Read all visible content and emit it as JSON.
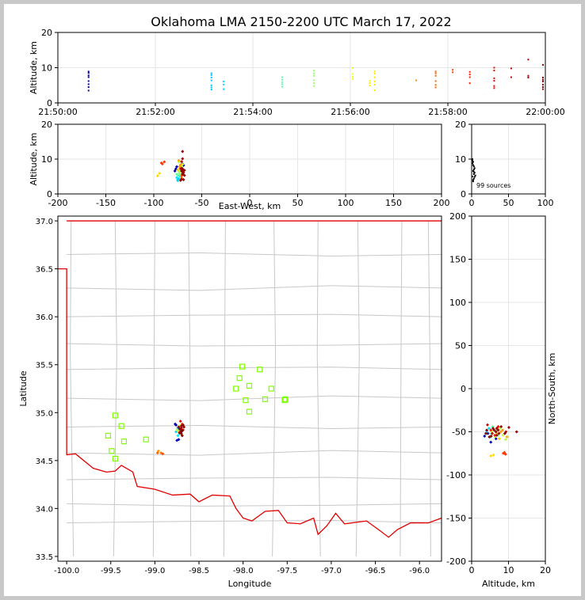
{
  "figure": {
    "title": "Oklahoma LMA 2150-2200 UTC March 17, 2022",
    "source_count": "99 sources",
    "colors": {
      "background": "#c8c8c8",
      "panel": "#ffffff",
      "grid": "#e6e6e6",
      "county": "#c8c8c8",
      "state_border": "#e00000",
      "station": "#7fff00"
    }
  },
  "chart_data": [
    {
      "id": "time-height",
      "type": "scatter",
      "xlabel": "",
      "ylabel": "Altitude, km",
      "xticks": [
        "21:50:00",
        "21:52:00",
        "21:54:00",
        "21:56:00",
        "21:58:00",
        "22:00:00"
      ],
      "x_unit": "minutes after 21:50:00 UTC",
      "xlim": [
        0,
        10
      ],
      "ylim": [
        0,
        20
      ],
      "yticks": [
        0,
        10,
        20
      ],
      "grid": true,
      "color_by": "time",
      "points": [
        [
          0.63,
          3.5
        ],
        [
          0.63,
          4.5
        ],
        [
          0.63,
          5.3
        ],
        [
          0.63,
          6.2
        ],
        [
          0.63,
          7.3
        ],
        [
          0.63,
          7.8
        ],
        [
          0.63,
          8.5
        ],
        [
          0.63,
          8.9
        ],
        [
          3.15,
          3.8
        ],
        [
          3.15,
          4.4
        ],
        [
          3.15,
          5.0
        ],
        [
          3.15,
          6.4
        ],
        [
          3.15,
          7.2
        ],
        [
          3.15,
          7.9
        ],
        [
          3.15,
          8.4
        ],
        [
          3.4,
          3.9
        ],
        [
          3.4,
          5.2
        ],
        [
          3.4,
          6.1
        ],
        [
          4.6,
          4.6
        ],
        [
          4.6,
          5.3
        ],
        [
          4.6,
          5.9
        ],
        [
          4.6,
          6.6
        ],
        [
          4.6,
          7.3
        ],
        [
          5.25,
          4.8
        ],
        [
          5.25,
          5.6
        ],
        [
          5.25,
          6.4
        ],
        [
          5.25,
          7.7
        ],
        [
          5.25,
          8.4
        ],
        [
          5.25,
          9.2
        ],
        [
          6.05,
          6.8
        ],
        [
          6.05,
          7.4
        ],
        [
          6.05,
          8.2
        ],
        [
          6.05,
          9.9
        ],
        [
          6.4,
          4.9
        ],
        [
          6.4,
          5.6
        ],
        [
          6.4,
          6.2
        ],
        [
          6.5,
          3.6
        ],
        [
          6.5,
          5.2
        ],
        [
          6.5,
          6.1
        ],
        [
          6.5,
          7.3
        ],
        [
          6.5,
          8.3
        ],
        [
          6.5,
          8.9
        ],
        [
          7.35,
          6.4
        ],
        [
          7.75,
          4.4
        ],
        [
          7.75,
          5.1
        ],
        [
          7.75,
          6.2
        ],
        [
          7.75,
          7.7
        ],
        [
          7.75,
          8.4
        ],
        [
          7.75,
          8.9
        ],
        [
          8.1,
          8.7
        ],
        [
          8.1,
          9.4
        ],
        [
          8.45,
          5.6
        ],
        [
          8.45,
          7.3
        ],
        [
          8.45,
          8.1
        ],
        [
          8.45,
          8.8
        ],
        [
          8.95,
          4.2
        ],
        [
          8.95,
          4.8
        ],
        [
          8.95,
          6.3
        ],
        [
          8.95,
          7.0
        ],
        [
          8.95,
          9.2
        ],
        [
          8.95,
          10.0
        ],
        [
          9.3,
          7.3
        ],
        [
          9.3,
          9.8
        ],
        [
          9.65,
          7.2
        ],
        [
          9.65,
          7.7
        ],
        [
          9.65,
          12.3
        ],
        [
          9.95,
          3.9
        ],
        [
          9.95,
          4.5
        ],
        [
          9.95,
          5.2
        ],
        [
          9.95,
          6.1
        ],
        [
          9.95,
          6.6
        ],
        [
          9.95,
          7.2
        ],
        [
          9.95,
          10.8
        ]
      ]
    },
    {
      "id": "east-west-altitude",
      "type": "scatter",
      "xlabel": "East-West, km",
      "ylabel": "Altitude, km",
      "xlim": [
        -200,
        200
      ],
      "ylim": [
        0,
        20
      ],
      "xticks": [
        -200,
        -150,
        -100,
        -50,
        0,
        50,
        100,
        150,
        200
      ],
      "yticks": [
        0,
        10,
        20
      ],
      "grid": true,
      "points": [
        [
          -78,
          6.6,
          0.05
        ],
        [
          -77,
          7.2,
          0.05
        ],
        [
          -76,
          7.8,
          0.06
        ],
        [
          -70,
          8.6,
          0.05
        ],
        [
          -69,
          8.2,
          0.07
        ],
        [
          -75,
          4.1,
          0.33
        ],
        [
          -74,
          4.4,
          0.33
        ],
        [
          -76,
          4.7,
          0.35
        ],
        [
          -73,
          5.2,
          0.36
        ],
        [
          -75,
          3.8,
          0.34
        ],
        [
          -75,
          5.3,
          0.46
        ],
        [
          -73,
          5.9,
          0.46
        ],
        [
          -74,
          6.6,
          0.47
        ],
        [
          -72,
          7.1,
          0.48
        ],
        [
          -76,
          5.7,
          0.47
        ],
        [
          -72,
          5.5,
          0.55
        ],
        [
          -73,
          6.3,
          0.56
        ],
        [
          -71,
          7.7,
          0.56
        ],
        [
          -70,
          8.5,
          0.57
        ],
        [
          -74,
          9.2,
          0.56
        ],
        [
          -96,
          5.2,
          0.66
        ],
        [
          -94,
          5.9,
          0.66
        ],
        [
          -75,
          6.9,
          0.67
        ],
        [
          -73,
          7.5,
          0.68
        ],
        [
          -73,
          7.9,
          0.72
        ],
        [
          -72,
          8.4,
          0.72
        ],
        [
          -74,
          9.6,
          0.71
        ],
        [
          -71,
          4.6,
          0.74
        ],
        [
          -91,
          8.6,
          0.82
        ],
        [
          -89,
          9.2,
          0.82
        ],
        [
          -92,
          8.9,
          0.82
        ],
        [
          -71,
          5.2,
          0.8
        ],
        [
          -70,
          6.3,
          0.86
        ],
        [
          -72,
          7.2,
          0.88
        ],
        [
          -71,
          4.3,
          0.93
        ],
        [
          -70,
          5.6,
          0.94
        ],
        [
          -69,
          6.8,
          0.95
        ],
        [
          -71,
          9.3,
          0.95
        ],
        [
          -70,
          10.1,
          0.96
        ],
        [
          -71,
          7.4,
          0.98
        ],
        [
          -70,
          12.2,
          0.98
        ],
        [
          -69,
          6.1,
          0.99
        ],
        [
          -68,
          5.3,
          0.99
        ],
        [
          -69,
          4.1,
          0.99
        ],
        [
          -72,
          3.9,
          0.99
        ],
        [
          -71,
          6.6,
          0.99
        ],
        [
          -70,
          7.2,
          0.99
        ],
        [
          -68,
          6.8,
          0.99
        ],
        [
          -70,
          5.8,
          0.99
        ]
      ]
    },
    {
      "id": "altitude-histogram",
      "type": "scatter",
      "xlim": [
        0,
        100
      ],
      "ylim": [
        0,
        20
      ],
      "xticks": [
        0,
        50,
        100
      ],
      "yticks": [
        0,
        10,
        20
      ],
      "grid": true,
      "points": [
        [
          2,
          4.0
        ],
        [
          3,
          4.4
        ],
        [
          4,
          4.9
        ],
        [
          5,
          5.3
        ],
        [
          3,
          5.7
        ],
        [
          4,
          6.1
        ],
        [
          2,
          6.6
        ],
        [
          3,
          7.0
        ],
        [
          4,
          7.4
        ],
        [
          3,
          7.9
        ],
        [
          2,
          8.3
        ],
        [
          1,
          8.8
        ],
        [
          2,
          9.2
        ],
        [
          1,
          9.6
        ],
        [
          1,
          10.0
        ],
        [
          1,
          5.0
        ],
        [
          2,
          3.6
        ],
        [
          3,
          6.3
        ]
      ]
    },
    {
      "id": "plan-view",
      "type": "map-scatter",
      "xlabel": "Longitude",
      "ylabel": "Latitude",
      "xlim": [
        -100.1,
        -95.75
      ],
      "ylim": [
        33.45,
        37.05
      ],
      "xticks": [
        -100.0,
        -99.5,
        -99.0,
        -98.5,
        -98.0,
        -97.5,
        -97.0,
        -96.5,
        -96.0
      ],
      "yticks": [
        33.5,
        34.0,
        34.5,
        35.0,
        35.5,
        36.0,
        36.5,
        37.0
      ],
      "stations": [
        [
          -99.45,
          34.97
        ],
        [
          -99.38,
          34.86
        ],
        [
          -99.53,
          34.76
        ],
        [
          -99.35,
          34.7
        ],
        [
          -99.49,
          34.6
        ],
        [
          -99.45,
          34.52
        ],
        [
          -99.1,
          34.72
        ],
        [
          -98.01,
          35.48
        ],
        [
          -98.04,
          35.36
        ],
        [
          -98.08,
          35.25
        ],
        [
          -97.93,
          35.28
        ],
        [
          -97.97,
          35.13
        ],
        [
          -97.93,
          35.01
        ],
        [
          -97.81,
          35.45
        ],
        [
          -97.75,
          35.14
        ],
        [
          -97.68,
          35.25
        ],
        [
          -97.53,
          35.13
        ],
        [
          -97.52,
          35.14
        ]
      ],
      "points": [
        [
          -98.77,
          34.88,
          0.05
        ],
        [
          -98.76,
          34.87,
          0.06
        ],
        [
          -98.73,
          34.72,
          0.07
        ],
        [
          -98.75,
          34.71,
          0.07
        ],
        [
          -98.74,
          34.84,
          0.3
        ],
        [
          -98.76,
          34.8,
          0.33
        ],
        [
          -98.72,
          34.78,
          0.35
        ],
        [
          -98.74,
          34.76,
          0.36
        ],
        [
          -98.73,
          34.82,
          0.45
        ],
        [
          -98.71,
          34.79,
          0.47
        ],
        [
          -98.7,
          34.84,
          0.48
        ],
        [
          -98.75,
          34.82,
          0.56
        ],
        [
          -98.72,
          34.86,
          0.57
        ],
        [
          -98.7,
          34.77,
          0.6
        ],
        [
          -98.73,
          34.8,
          0.68
        ],
        [
          -98.96,
          34.6,
          0.72
        ],
        [
          -98.93,
          34.58,
          0.76
        ],
        [
          -98.91,
          34.57,
          0.8
        ],
        [
          -98.97,
          34.58,
          0.78
        ],
        [
          -98.69,
          34.88,
          0.85
        ],
        [
          -98.71,
          34.91,
          0.9
        ],
        [
          -98.68,
          34.82,
          0.92
        ],
        [
          -98.7,
          34.84,
          0.95
        ],
        [
          -98.67,
          34.85,
          0.98
        ],
        [
          -98.72,
          34.79,
          0.99
        ],
        [
          -98.7,
          34.86,
          0.99
        ],
        [
          -98.69,
          34.81,
          0.99
        ],
        [
          -98.7,
          34.78,
          0.99
        ],
        [
          -98.72,
          34.83,
          0.99
        ],
        [
          -98.68,
          34.87,
          0.99
        ],
        [
          -98.71,
          34.8,
          0.99
        ],
        [
          -98.69,
          34.76,
          0.99
        ],
        [
          -98.73,
          34.85,
          0.99
        ],
        [
          -98.7,
          34.82,
          0.99
        ],
        [
          -98.7,
          34.8,
          0.99
        ]
      ]
    },
    {
      "id": "north-south-altitude",
      "type": "scatter",
      "xlabel": "Altitude, km",
      "ylabel": "North-South, km",
      "xlim": [
        0,
        20
      ],
      "ylim": [
        -200,
        200
      ],
      "xticks": [
        0,
        10,
        20
      ],
      "yticks": [
        -200,
        -150,
        -100,
        -50,
        0,
        50,
        100,
        150,
        200
      ],
      "grid": true,
      "points": [
        [
          3.5,
          -55,
          0.05
        ],
        [
          4.4,
          -52,
          0.06
        ],
        [
          5.2,
          -62,
          0.07
        ],
        [
          6.6,
          -58,
          0.07
        ],
        [
          4.1,
          -49,
          0.33
        ],
        [
          4.7,
          -46,
          0.35
        ],
        [
          5.1,
          -56,
          0.36
        ],
        [
          3.8,
          -52,
          0.33
        ],
        [
          5.3,
          -52,
          0.46
        ],
        [
          6.6,
          -48,
          0.47
        ],
        [
          7.1,
          -54,
          0.48
        ],
        [
          5.7,
          -44,
          0.46
        ],
        [
          5.5,
          -50,
          0.56
        ],
        [
          6.3,
          -56,
          0.56
        ],
        [
          7.7,
          -46,
          0.56
        ],
        [
          8.5,
          -54,
          0.57
        ],
        [
          9.2,
          -59,
          0.56
        ],
        [
          5.2,
          -78,
          0.66
        ],
        [
          5.9,
          -77,
          0.66
        ],
        [
          6.9,
          -52,
          0.67
        ],
        [
          7.5,
          -58,
          0.68
        ],
        [
          7.9,
          -50,
          0.72
        ],
        [
          8.4,
          -48,
          0.72
        ],
        [
          9.6,
          -56,
          0.71
        ],
        [
          8.6,
          -75,
          0.82
        ],
        [
          9.2,
          -76,
          0.82
        ],
        [
          8.9,
          -74,
          0.82
        ],
        [
          5.2,
          -48,
          0.86
        ],
        [
          6.3,
          -54,
          0.86
        ],
        [
          7.2,
          -44,
          0.88
        ],
        [
          4.3,
          -42,
          0.93
        ],
        [
          5.6,
          -52,
          0.94
        ],
        [
          6.8,
          -46,
          0.95
        ],
        [
          9.3,
          -50,
          0.95
        ],
        [
          10.1,
          -45,
          0.96
        ],
        [
          7.4,
          -52,
          0.98
        ],
        [
          12.2,
          -50,
          0.98
        ],
        [
          6.1,
          -48,
          0.99
        ],
        [
          5.3,
          -55,
          0.99
        ],
        [
          4.1,
          -48,
          0.99
        ],
        [
          3.9,
          -52,
          0.99
        ],
        [
          6.6,
          -50,
          0.99
        ],
        [
          7.2,
          -48,
          0.99
        ],
        [
          6.8,
          -54,
          0.99
        ],
        [
          5.8,
          -46,
          0.99
        ],
        [
          8.0,
          -44,
          0.99
        ],
        [
          9.0,
          -52,
          0.99
        ],
        [
          4.8,
          -56,
          0.99
        ]
      ]
    }
  ]
}
